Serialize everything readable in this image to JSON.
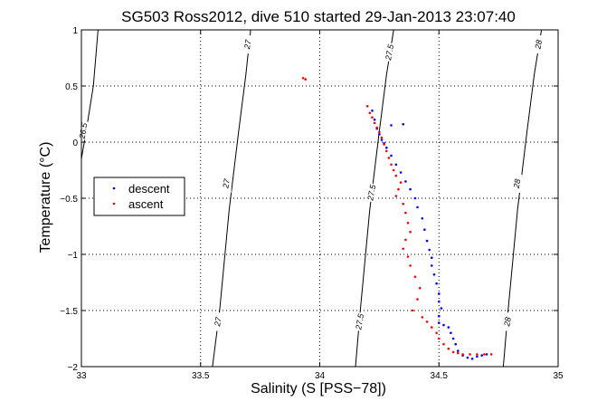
{
  "chart_data": {
    "type": "scatter",
    "title": "SG503 Ross2012, dive 510 started 29-Jan-2013 23:07:40",
    "xlabel": "Salinity (S [PSS−78])",
    "ylabel": "Temperature (°C)",
    "xlim": [
      33,
      35
    ],
    "ylim": [
      -2,
      1
    ],
    "x_ticks": [
      {
        "value": 33,
        "label": "33"
      },
      {
        "value": 33.5,
        "label": "33.5"
      },
      {
        "value": 34,
        "label": "34"
      },
      {
        "value": 34.5,
        "label": "34.5"
      },
      {
        "value": 35,
        "label": "35"
      }
    ],
    "y_ticks": [
      {
        "value": -2,
        "label": "−2"
      },
      {
        "value": -1.5,
        "label": "−1.5"
      },
      {
        "value": -1,
        "label": "−1"
      },
      {
        "value": -0.5,
        "label": "−0.5"
      },
      {
        "value": 0,
        "label": "0"
      },
      {
        "value": 0.5,
        "label": "0.5"
      },
      {
        "value": 1,
        "label": "1"
      }
    ],
    "grid": true,
    "legend": {
      "position": "middle-left",
      "entries": [
        "descent",
        "ascent"
      ]
    },
    "colors": {
      "descent": "#0000ff",
      "ascent": "#ff0000",
      "contour": "#000000",
      "grid": "#000000"
    },
    "density_contours": [
      {
        "label": "26.5",
        "points": [
          [
            33.0,
            -0.15
          ],
          [
            33.02,
            0.1
          ],
          [
            33.05,
            0.5
          ],
          [
            33.07,
            1.0
          ]
        ],
        "labels": [
          {
            "label": "26.5",
            "s": 33.01,
            "t": 0.1
          }
        ]
      },
      {
        "label": "27",
        "points": [
          [
            33.55,
            -2.0
          ],
          [
            33.58,
            -1.5
          ],
          [
            33.62,
            -0.6
          ],
          [
            33.66,
            0.1
          ],
          [
            33.69,
            0.6
          ],
          [
            33.71,
            1.0
          ]
        ],
        "labels": [
          {
            "label": "27",
            "s": 33.575,
            "t": -1.6
          },
          {
            "label": "27",
            "s": 33.61,
            "t": -0.37
          },
          {
            "label": "27",
            "s": 33.7,
            "t": 0.87
          }
        ]
      },
      {
        "label": "27.5",
        "points": [
          [
            34.15,
            -2.0
          ],
          [
            34.17,
            -1.5
          ],
          [
            34.21,
            -0.6
          ],
          [
            34.25,
            0.1
          ],
          [
            34.28,
            0.6
          ],
          [
            34.31,
            1.0
          ]
        ],
        "labels": [
          {
            "label": "27.5",
            "s": 34.17,
            "t": -1.6
          },
          {
            "label": "27.5",
            "s": 34.22,
            "t": -0.45
          },
          {
            "label": "27.5",
            "s": 34.295,
            "t": 0.8
          }
        ]
      },
      {
        "label": "28",
        "points": [
          [
            34.77,
            -2.0
          ],
          [
            34.79,
            -1.5
          ],
          [
            34.83,
            -0.6
          ],
          [
            34.87,
            0.1
          ],
          [
            34.9,
            0.6
          ],
          [
            34.93,
            1.0
          ]
        ],
        "labels": [
          {
            "label": "28",
            "s": 34.79,
            "t": -1.6
          },
          {
            "label": "28",
            "s": 34.83,
            "t": -0.37
          },
          {
            "label": "28",
            "s": 34.92,
            "t": 0.87
          }
        ]
      }
    ],
    "series": [
      {
        "name": "descent",
        "points": [
          [
            34.22,
            0.28
          ],
          [
            34.23,
            0.2
          ],
          [
            34.24,
            0.12
          ],
          [
            34.25,
            0.07
          ],
          [
            34.26,
            0.02
          ],
          [
            34.27,
            -0.01
          ],
          [
            34.3,
            0.15
          ],
          [
            34.35,
            0.16
          ],
          [
            34.28,
            -0.05
          ],
          [
            34.3,
            -0.12
          ],
          [
            34.32,
            -0.2
          ],
          [
            34.34,
            -0.27
          ],
          [
            34.36,
            -0.35
          ],
          [
            34.38,
            -0.42
          ],
          [
            34.4,
            -0.5
          ],
          [
            34.41,
            -0.58
          ],
          [
            34.43,
            -0.68
          ],
          [
            34.44,
            -0.78
          ],
          [
            34.45,
            -0.88
          ],
          [
            34.46,
            -0.96
          ],
          [
            34.47,
            -1.03
          ],
          [
            34.47,
            -1.1
          ],
          [
            34.48,
            -1.18
          ],
          [
            34.49,
            -1.26
          ],
          [
            34.5,
            -1.35
          ],
          [
            34.5,
            -1.42
          ],
          [
            34.51,
            -1.48
          ],
          [
            34.5,
            -1.55
          ],
          [
            34.5,
            -1.61
          ],
          [
            34.52,
            -1.63
          ],
          [
            34.54,
            -1.65
          ],
          [
            34.55,
            -1.7
          ],
          [
            34.56,
            -1.75
          ],
          [
            34.57,
            -1.8
          ],
          [
            34.58,
            -1.86
          ],
          [
            34.6,
            -1.9
          ],
          [
            34.62,
            -1.92
          ],
          [
            34.64,
            -1.93
          ],
          [
            34.66,
            -1.91
          ],
          [
            34.68,
            -1.9
          ],
          [
            34.7,
            -1.89
          ]
        ]
      },
      {
        "name": "ascent",
        "points": [
          [
            33.93,
            0.57
          ],
          [
            33.94,
            0.56
          ],
          [
            34.2,
            0.32
          ],
          [
            34.21,
            0.26
          ],
          [
            34.22,
            0.22
          ],
          [
            34.23,
            0.17
          ],
          [
            34.24,
            0.13
          ],
          [
            34.25,
            0.09
          ],
          [
            34.26,
            0.04
          ],
          [
            34.27,
            -0.02
          ],
          [
            34.28,
            -0.08
          ],
          [
            34.29,
            -0.14
          ],
          [
            34.3,
            -0.2
          ],
          [
            34.31,
            -0.25
          ],
          [
            34.32,
            -0.3
          ],
          [
            34.34,
            -0.36
          ],
          [
            34.33,
            -0.42
          ],
          [
            34.32,
            -0.48
          ],
          [
            34.35,
            -0.55
          ],
          [
            34.36,
            -0.63
          ],
          [
            34.37,
            -0.72
          ],
          [
            34.38,
            -0.8
          ],
          [
            34.36,
            -0.87
          ],
          [
            34.35,
            -0.95
          ],
          [
            34.37,
            -1.02
          ],
          [
            34.38,
            -1.1
          ],
          [
            34.4,
            -1.2
          ],
          [
            34.42,
            -1.3
          ],
          [
            34.41,
            -1.4
          ],
          [
            34.39,
            -1.5
          ],
          [
            34.43,
            -1.56
          ],
          [
            34.45,
            -1.6
          ],
          [
            34.47,
            -1.65
          ],
          [
            34.49,
            -1.7
          ],
          [
            34.5,
            -1.75
          ],
          [
            34.52,
            -1.8
          ],
          [
            34.54,
            -1.84
          ],
          [
            34.56,
            -1.87
          ],
          [
            34.58,
            -1.88
          ],
          [
            34.6,
            -1.89
          ],
          [
            34.63,
            -1.89
          ],
          [
            34.66,
            -1.89
          ],
          [
            34.69,
            -1.89
          ],
          [
            34.72,
            -1.89
          ]
        ]
      }
    ]
  }
}
